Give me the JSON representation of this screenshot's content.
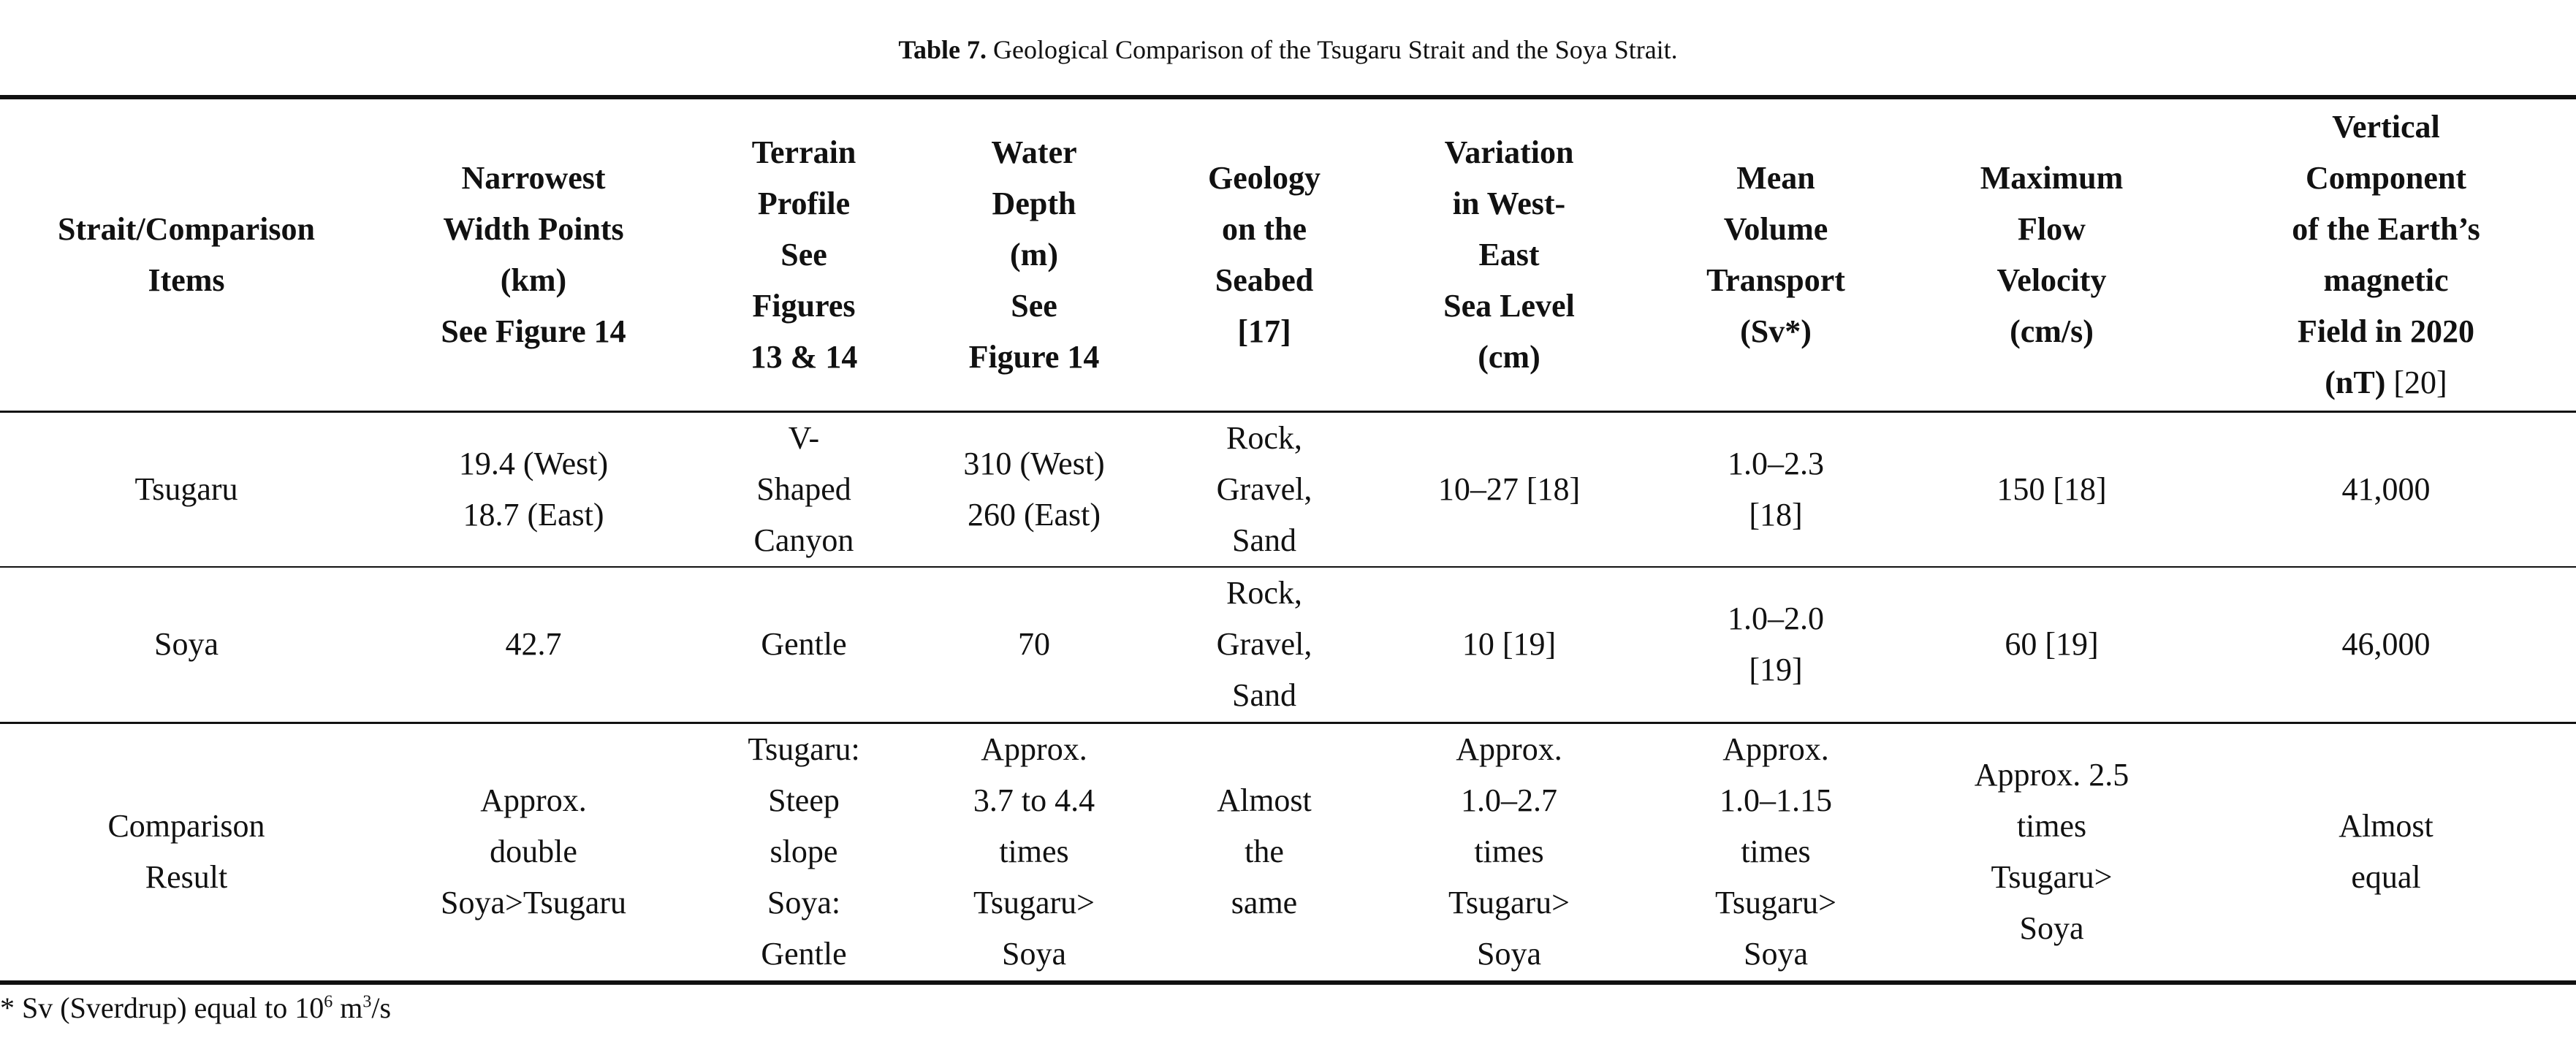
{
  "caption": {
    "label": "Table 7.",
    "text": "Geological Comparison of the Tsugaru Strait and the Soya Strait."
  },
  "headers": [
    [
      "Strait/Comparison",
      "Items"
    ],
    [
      "Narrowest",
      "Width Points",
      "(km)",
      "See Figure 14"
    ],
    [
      "Terrain",
      "Profile",
      "See",
      "Figures",
      "13 & 14"
    ],
    [
      "Water",
      "Depth",
      "(m)",
      "See",
      "Figure 14"
    ],
    [
      "Geology",
      "on the",
      "Seabed",
      "[17]"
    ],
    [
      "Variation",
      "in West-",
      "East",
      "Sea Level",
      "(cm)"
    ],
    [
      "Mean",
      "Volume",
      "Transport",
      "(Sv*)"
    ],
    [
      "Maximum",
      "Flow",
      "Velocity",
      "(cm/s)"
    ],
    [
      "Vertical",
      "Component",
      "of the Earth’s",
      "magnetic",
      "Field in 2020",
      "(nT)"
    ]
  ],
  "header_last_ref": "[20]",
  "rows": [
    [
      [
        "Tsugaru"
      ],
      [
        "19.4 (West)",
        "18.7 (East)"
      ],
      [
        "V-",
        "Shaped",
        "Canyon"
      ],
      [
        "310 (West)",
        "260 (East)"
      ],
      [
        "Rock,",
        "Gravel,",
        "Sand"
      ],
      [
        "10–27 [18]"
      ],
      [
        "1.0–2.3",
        "[18]"
      ],
      [
        "150 [18]"
      ],
      [
        "41,000"
      ]
    ],
    [
      [
        "Soya"
      ],
      [
        "42.7"
      ],
      [
        "Gentle"
      ],
      [
        "70"
      ],
      [
        "Rock,",
        "Gravel,",
        "Sand"
      ],
      [
        "10 [19]"
      ],
      [
        "1.0–2.0",
        "[19]"
      ],
      [
        "60 [19]"
      ],
      [
        "46,000"
      ]
    ],
    [
      [
        "Comparison",
        "Result"
      ],
      [
        "Approx.",
        "double",
        "Soya>Tsugaru"
      ],
      [
        "Tsugaru:",
        "Steep",
        "slope",
        "Soya:",
        "Gentle"
      ],
      [
        "Approx.",
        "3.7 to 4.4",
        "times",
        "Tsugaru>",
        "Soya"
      ],
      [
        "Almost",
        "the",
        "same"
      ],
      [
        "Approx.",
        "1.0–2.7",
        "times",
        "Tsugaru>",
        "Soya"
      ],
      [
        "Approx.",
        "1.0–1.15",
        "times",
        "Tsugaru>",
        "Soya"
      ],
      [
        "Approx. 2.5",
        "times",
        "Tsugaru>",
        "Soya"
      ],
      [
        "Almost",
        "equal"
      ]
    ]
  ],
  "footnote": {
    "prefix": "* Sv (Sverdrup) equal to 10",
    "exp1": "6",
    "mid": " m",
    "exp2": "3",
    "suffix": "/s"
  }
}
